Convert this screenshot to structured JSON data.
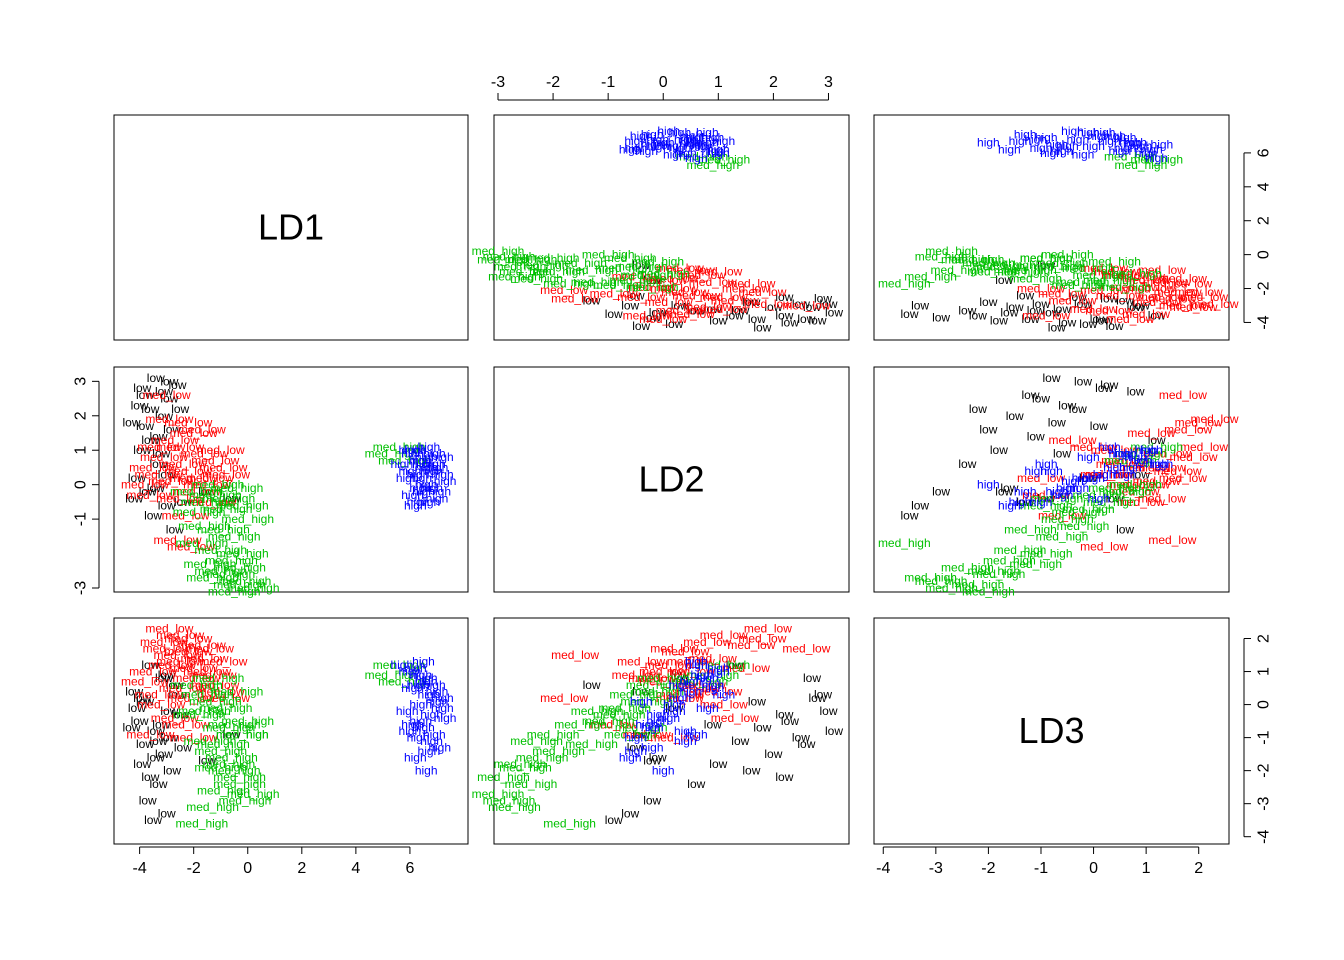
{
  "chart_data": {
    "type": "scatter",
    "variables": [
      "LD1",
      "LD2",
      "LD3"
    ],
    "ranges": {
      "LD1": [
        -4.8,
        8.0
      ],
      "LD2": [
        -3.0,
        3.3
      ],
      "LD3": [
        -4.1,
        2.5
      ]
    },
    "ticks": {
      "LD1": {
        "values": [
          -4,
          -2,
          0,
          2,
          4,
          6
        ],
        "labels": [
          "-4",
          "-2",
          "0",
          "2",
          "4",
          "6"
        ]
      },
      "LD2": {
        "values": [
          -3,
          -2,
          -1,
          0,
          1,
          2,
          3
        ],
        "labels": [
          "-3",
          "-2",
          "-1",
          "0",
          "1",
          "2",
          "3"
        ]
      },
      "LD2_left": {
        "values": [
          -3,
          -1,
          0,
          1,
          2,
          3
        ],
        "labels": [
          "-3",
          "-1",
          "0",
          "1",
          "2",
          "3"
        ]
      },
      "LD3": {
        "values": [
          -4,
          -3,
          -2,
          -1,
          0,
          1,
          2
        ],
        "labels": [
          "-4",
          "-3",
          "-2",
          "-1",
          "0",
          "1",
          "2"
        ]
      },
      "LD1_right": {
        "values": [
          -4,
          -2,
          0,
          2,
          4,
          6
        ],
        "labels": [
          "-4",
          "-2",
          "0",
          "2",
          "4",
          "6"
        ]
      },
      "LD3_right": {
        "values": [
          -4,
          -3,
          -2,
          -1,
          0,
          1,
          2
        ],
        "labels": [
          "-4",
          "-3",
          "-2",
          "-1",
          "0",
          "1",
          "2"
        ]
      }
    },
    "classes": [
      {
        "label": "low",
        "color": "#000000"
      },
      {
        "label": "med_low",
        "color": "#ff0000"
      },
      {
        "label": "med_high",
        "color": "#00c000"
      },
      {
        "label": "high",
        "color": "#0000ff"
      }
    ],
    "points": {
      "low": [
        [
          -2.9,
          3.0,
          -0.2
        ],
        [
          -3.4,
          3.1,
          -0.8
        ],
        [
          -3.8,
          2.6,
          -1.2
        ],
        [
          -2.6,
          2.9,
          0.3
        ],
        [
          -4.0,
          2.3,
          -0.5
        ],
        [
          -3.1,
          2.0,
          -1.5
        ],
        [
          -3.6,
          2.2,
          -2.2
        ],
        [
          -2.8,
          1.6,
          -2.0
        ],
        [
          -3.9,
          1.0,
          -1.8
        ],
        [
          -3.3,
          0.6,
          -2.4
        ],
        [
          -4.1,
          0.2,
          -0.1
        ],
        [
          -3.7,
          -0.2,
          -2.9
        ],
        [
          -3.0,
          -0.6,
          -3.3
        ],
        [
          -3.5,
          -0.9,
          -3.5
        ],
        [
          -2.7,
          -1.3,
          0.6
        ],
        [
          -3.2,
          0.9,
          -0.6
        ],
        [
          -3.8,
          1.7,
          0.1
        ],
        [
          -2.9,
          2.5,
          -1.0
        ],
        [
          -4.2,
          -0.4,
          0.4
        ],
        [
          -3.4,
          -0.1,
          -1.6
        ],
        [
          -0.6,
          -0.4,
          -0.9
        ],
        [
          -1.5,
          -0.2,
          -1.7
        ],
        [
          -3.1,
          2.7,
          0.8
        ],
        [
          -2.5,
          2.2,
          -0.3
        ],
        [
          -3.6,
          1.3,
          1.2
        ],
        [
          -3.0,
          0.3,
          0.9
        ],
        [
          -2.4,
          -0.5,
          -1.3
        ],
        [
          -3.9,
          2.8,
          0.2
        ],
        [
          -4.3,
          1.8,
          -0.7
        ],
        [
          -3.3,
          1.4,
          -1.1
        ]
      ],
      "med_low": [
        [
          -2.5,
          1.1,
          2.1
        ],
        [
          -3.1,
          0.8,
          1.9
        ],
        [
          -2.2,
          0.4,
          1.6
        ],
        [
          -1.6,
          0.9,
          1.4
        ],
        [
          -2.8,
          0.1,
          1.2
        ],
        [
          -3.5,
          0.5,
          1.0
        ],
        [
          -1.9,
          -0.2,
          0.8
        ],
        [
          -2.4,
          0.6,
          0.5
        ],
        [
          -3.3,
          0.3,
          0.3
        ],
        [
          -1.4,
          0.2,
          1.7
        ],
        [
          -2.0,
          1.5,
          1.1
        ],
        [
          -2.7,
          1.3,
          -0.4
        ],
        [
          -3.6,
          -0.3,
          -0.9
        ],
        [
          -2.1,
          -1.8,
          0.2
        ],
        [
          -1.2,
          0.7,
          0.6
        ],
        [
          -2.9,
          1.9,
          2.3
        ],
        [
          -1.7,
          1.6,
          1.8
        ],
        [
          -3.2,
          1.1,
          0.0
        ],
        [
          -2.3,
          -0.9,
          -0.6
        ],
        [
          -0.9,
          0.5,
          1.3
        ],
        [
          -1.3,
          -0.5,
          0.9
        ],
        [
          -2.6,
          -1.6,
          1.5
        ],
        [
          -3.8,
          0.0,
          0.7
        ],
        [
          -2.0,
          0.2,
          -1.0
        ],
        [
          -1.0,
          1.0,
          0.4
        ],
        [
          -3.0,
          2.6,
          1.7
        ],
        [
          -2.2,
          1.8,
          2.0
        ],
        [
          -1.5,
          0.0,
          1.0
        ],
        [
          -0.8,
          0.3,
          0.2
        ],
        [
          -2.5,
          -0.4,
          1.3
        ]
      ],
      "med_high": [
        [
          -1.0,
          -1.9,
          -1.4
        ],
        [
          -0.7,
          -2.6,
          -1.8
        ],
        [
          -0.3,
          -2.9,
          -2.2
        ],
        [
          -1.4,
          -2.3,
          -1.1
        ],
        [
          -0.5,
          -1.5,
          -0.6
        ],
        [
          -1.8,
          -0.8,
          -0.3
        ],
        [
          -1.2,
          -0.3,
          0.1
        ],
        [
          -0.2,
          -0.6,
          -0.9
        ],
        [
          -0.9,
          -3.2,
          -2.6
        ],
        [
          -0.1,
          -2.8,
          -2.9
        ],
        [
          -1.6,
          -1.2,
          -0.2
        ],
        [
          -0.4,
          -0.1,
          0.4
        ],
        [
          -1.1,
          0.0,
          0.8
        ],
        [
          -0.6,
          -2.2,
          -1.6
        ],
        [
          -1.3,
          -2.7,
          -3.1
        ],
        [
          -0.8,
          -0.7,
          -0.1
        ],
        [
          0.0,
          -1.0,
          -0.5
        ],
        [
          -1.7,
          -1.7,
          -3.6
        ],
        [
          -0.3,
          -2.4,
          -2.4
        ],
        [
          -1.5,
          -0.5,
          0.3
        ],
        [
          0.2,
          -3.0,
          -2.7
        ],
        [
          -0.9,
          -1.3,
          -1.2
        ],
        [
          -1.9,
          -0.2,
          0.6
        ],
        [
          -0.5,
          -3.1,
          -2.0
        ],
        [
          5.6,
          1.1,
          1.2
        ],
        [
          5.3,
          0.9,
          0.9
        ],
        [
          5.8,
          0.7,
          0.7
        ],
        [
          -0.2,
          -2.0,
          -0.9
        ],
        [
          -1.0,
          -2.5,
          -1.9
        ],
        [
          -0.7,
          -0.4,
          -0.7
        ]
      ],
      "high": [
        [
          6.2,
          1.0,
          1.1
        ],
        [
          6.6,
          0.8,
          0.8
        ],
        [
          7.0,
          0.5,
          0.4
        ],
        [
          6.4,
          0.2,
          0.0
        ],
        [
          6.8,
          -0.1,
          -0.3
        ],
        [
          6.1,
          -0.3,
          -0.6
        ],
        [
          7.2,
          0.3,
          0.2
        ],
        [
          6.5,
          0.6,
          1.3
        ],
        [
          6.9,
          0.9,
          0.6
        ],
        [
          6.3,
          -0.5,
          -1.0
        ],
        [
          7.1,
          -0.2,
          -1.3
        ],
        [
          6.0,
          0.4,
          -0.8
        ],
        [
          6.7,
          1.1,
          0.3
        ],
        [
          6.2,
          -0.6,
          -1.6
        ],
        [
          7.3,
          0.1,
          -0.4
        ],
        [
          6.6,
          0.0,
          -2.0
        ],
        [
          6.4,
          0.7,
          0.9
        ],
        [
          5.9,
          0.2,
          -0.2
        ],
        [
          6.8,
          0.4,
          -1.1
        ],
        [
          7.0,
          -0.4,
          0.1
        ],
        [
          6.1,
          0.9,
          0.5
        ],
        [
          6.5,
          -0.2,
          -0.7
        ],
        [
          6.9,
          0.6,
          -0.9
        ],
        [
          6.3,
          0.3,
          0.6
        ],
        [
          6.7,
          -0.5,
          -1.4
        ],
        [
          6.0,
          1.0,
          1.0
        ],
        [
          7.2,
          0.8,
          -0.1
        ],
        [
          6.4,
          -0.1,
          -0.5
        ],
        [
          6.6,
          0.5,
          0.7
        ],
        [
          5.7,
          0.6,
          1.2
        ]
      ]
    }
  }
}
